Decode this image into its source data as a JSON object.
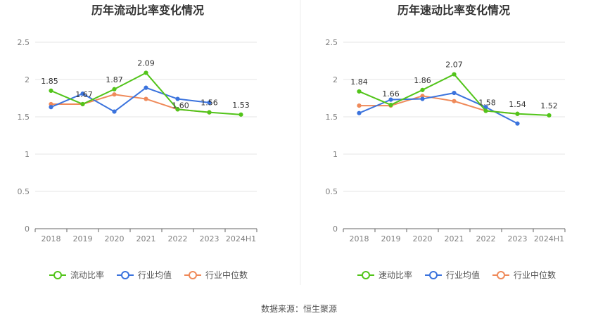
{
  "colors": {
    "primary": "#52c41a",
    "industry_avg": "#3b73dd",
    "industry_median": "#ef8a5a",
    "grid": "#e6e6e6",
    "axis": "#666666"
  },
  "chart_data": [
    {
      "type": "line",
      "title": "历年流动比率变化情况",
      "categories": [
        "2018",
        "2019",
        "2020",
        "2021",
        "2022",
        "2023",
        "2024H1"
      ],
      "ylim": [
        0,
        2.5
      ],
      "yticks": [
        0,
        0.5,
        1,
        1.5,
        2,
        2.5
      ],
      "ytick_labels": [
        "0",
        "0.5",
        "1",
        "1.5",
        "2",
        "2.5"
      ],
      "grid": true,
      "legend_position": "bottom",
      "series": [
        {
          "name": "流动比率",
          "role": "primary",
          "values": [
            1.85,
            1.67,
            1.87,
            2.09,
            1.6,
            1.56,
            1.53
          ],
          "labels": [
            "1.85",
            "1.67",
            "1.87",
            "2.09",
            "1.60",
            "1.56",
            "1.53"
          ]
        },
        {
          "name": "行业均值",
          "role": "industry_avg",
          "values": [
            1.63,
            1.81,
            1.57,
            1.89,
            1.74,
            1.69,
            null
          ]
        },
        {
          "name": "行业中位数",
          "role": "industry_median",
          "values": [
            1.67,
            1.67,
            1.8,
            1.74,
            1.6,
            1.56,
            null
          ]
        }
      ]
    },
    {
      "type": "line",
      "title": "历年速动比率变化情况",
      "categories": [
        "2018",
        "2019",
        "2020",
        "2021",
        "2022",
        "2023",
        "2024H1"
      ],
      "ylim": [
        0,
        2.5
      ],
      "yticks": [
        0,
        0.5,
        1,
        1.5,
        2,
        2.5
      ],
      "ytick_labels": [
        "0",
        "0.5",
        "1",
        "1.5",
        "2",
        "2.5"
      ],
      "grid": true,
      "legend_position": "bottom",
      "series": [
        {
          "name": "速动比率",
          "role": "primary",
          "values": [
            1.84,
            1.66,
            1.86,
            2.07,
            1.58,
            1.54,
            1.52
          ],
          "labels": [
            "1.84",
            "1.66",
            "1.86",
            "2.07",
            "1.58",
            "1.54",
            "1.52"
          ]
        },
        {
          "name": "行业均值",
          "role": "industry_avg",
          "values": [
            1.55,
            1.73,
            1.74,
            1.82,
            1.63,
            1.41,
            null
          ]
        },
        {
          "name": "行业中位数",
          "role": "industry_median",
          "values": [
            1.65,
            1.65,
            1.78,
            1.71,
            1.58,
            1.54,
            null
          ]
        }
      ]
    }
  ],
  "source": "数据来源：恒生聚源"
}
